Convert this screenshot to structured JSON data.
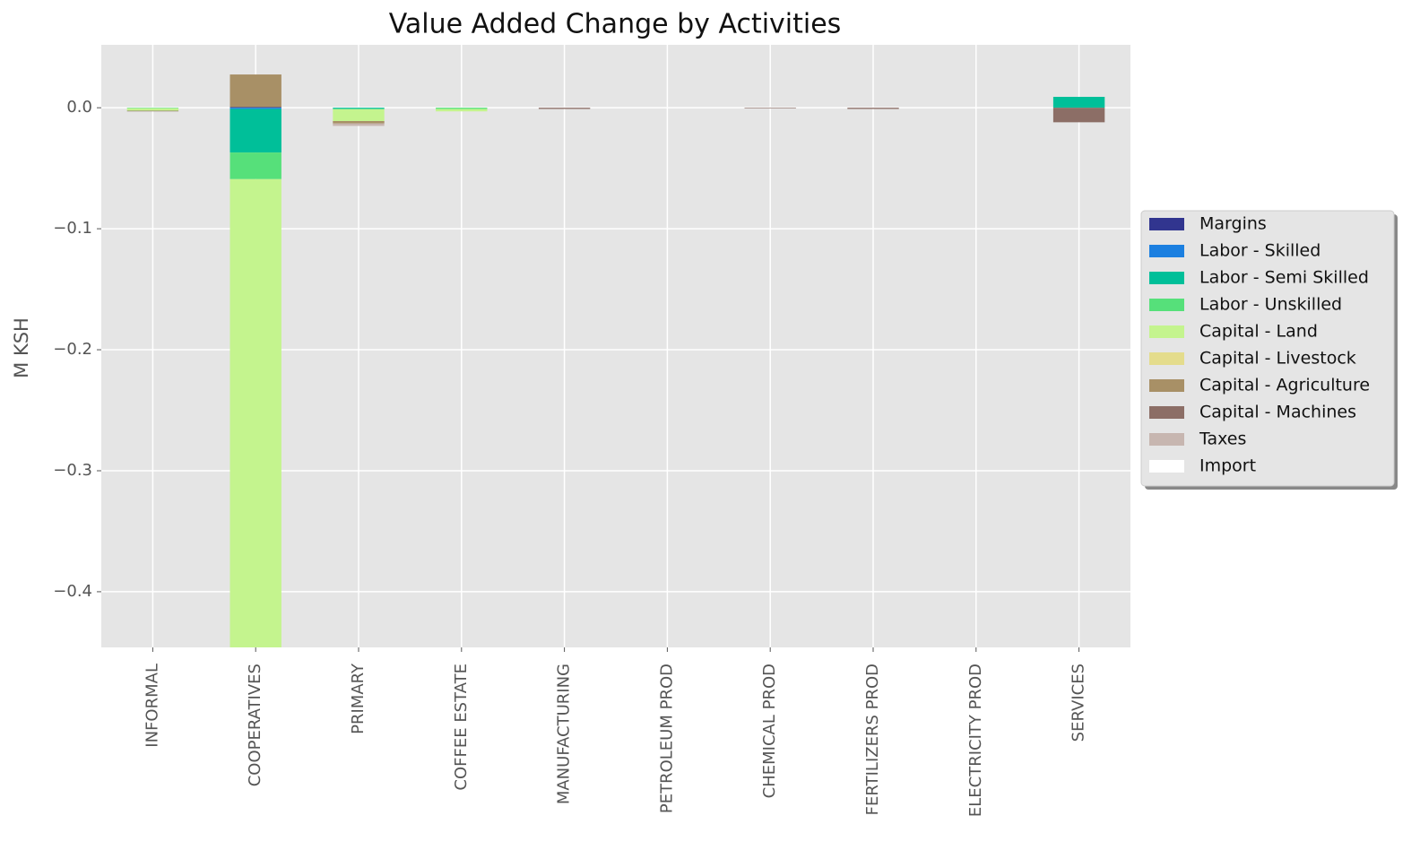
{
  "chart_data": {
    "type": "bar",
    "stacked": true,
    "title": "Value Added Change by Activities",
    "y_label": "M KSH",
    "categories": [
      "INFORMAL",
      "COOPERATIVES",
      "PRIMARY",
      "COFFEE ESTATE",
      "MANUFACTURING",
      "PETROLEUM PROD",
      "CHEMICAL PROD",
      "FERTILIZERS PROD",
      "ELECTRICITY PROD",
      "SERVICES"
    ],
    "series": [
      {
        "name": "Margins",
        "color": "#31358f",
        "values": [
          0,
          0.0005,
          0,
          0,
          0,
          0,
          0,
          0,
          0,
          0
        ]
      },
      {
        "name": "Labor - Skilled",
        "color": "#1b7fe0",
        "values": [
          0,
          -0.001,
          0,
          0,
          0,
          0,
          0,
          0,
          0,
          0
        ]
      },
      {
        "name": "Labor - Semi Skilled",
        "color": "#00bf99",
        "values": [
          0,
          -0.036,
          -0.001,
          0,
          0,
          0,
          0,
          0,
          0,
          0.009
        ]
      },
      {
        "name": "Labor - Unskilled",
        "color": "#56e07a",
        "values": [
          -0.0005,
          -0.022,
          0,
          -0.001,
          0,
          0,
          0,
          0,
          0,
          0
        ]
      },
      {
        "name": "Capital - Land",
        "color": "#c4f48e",
        "values": [
          -0.002,
          -0.4,
          -0.01,
          -0.002,
          0,
          0,
          0,
          0,
          0,
          0
        ]
      },
      {
        "name": "Capital - Livestock",
        "color": "#e4dc8c",
        "values": [
          0,
          0,
          0,
          0,
          0,
          0,
          0,
          0,
          0,
          0
        ]
      },
      {
        "name": "Capital - Agriculture",
        "color": "#a89066",
        "values": [
          0,
          0.027,
          -0.002,
          0,
          0,
          0,
          0,
          0,
          0,
          0
        ]
      },
      {
        "name": "Capital - Machines",
        "color": "#8c6e66",
        "values": [
          -0.0005,
          0,
          0,
          0,
          -0.001,
          0,
          -0.0005,
          -0.001,
          0,
          -0.012
        ]
      },
      {
        "name": "Taxes",
        "color": "#c7b6b0",
        "values": [
          0,
          0,
          -0.002,
          0,
          0,
          0,
          0,
          0,
          0,
          0
        ]
      },
      {
        "name": "Import",
        "color": "#ffffff",
        "values": [
          0,
          0,
          0,
          0,
          0,
          0,
          0,
          0,
          0,
          0
        ]
      }
    ],
    "ylim": [
      -0.446,
      0.052
    ],
    "yticks": [
      {
        "value": -0.4,
        "label": "−0.4"
      },
      {
        "value": -0.3,
        "label": "−0.3"
      },
      {
        "value": -0.2,
        "label": "−0.2"
      },
      {
        "value": -0.1,
        "label": "−0.1"
      },
      {
        "value": 0,
        "label": "0.0"
      }
    ],
    "grid": true,
    "legend": "right"
  }
}
